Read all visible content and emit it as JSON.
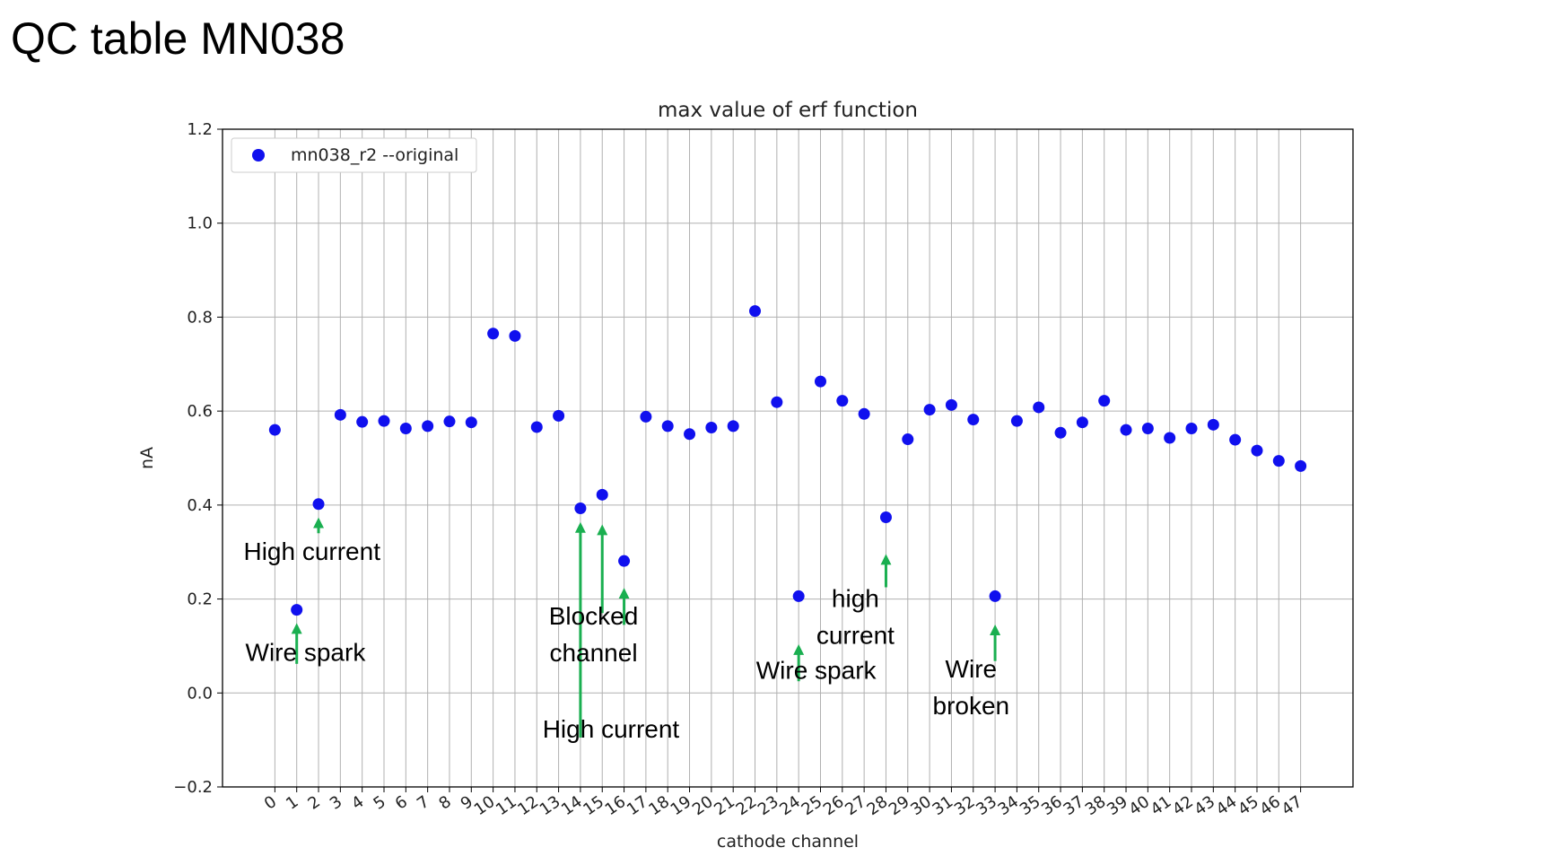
{
  "slide_title": "QC table MN038",
  "colors": {
    "points": "#1010ee",
    "arrows": "#1aaf50",
    "grid": "#b0b0b0"
  },
  "chart_data": {
    "type": "scatter",
    "title": "max value of erf function",
    "xlabel": "cathode channel",
    "ylabel": "nA",
    "xlim": [
      -2.4,
      49.4
    ],
    "ylim": [
      -0.2,
      1.2
    ],
    "yticks": [
      "−0.2",
      "0.0",
      "0.2",
      "0.4",
      "0.6",
      "0.8",
      "1.0",
      "1.2"
    ],
    "grid": true,
    "legend_position": "upper-left",
    "series": [
      {
        "name": "mn038_r2 --original",
        "color": "#1010ee",
        "x": [
          0,
          1,
          2,
          3,
          4,
          5,
          6,
          7,
          8,
          9,
          10,
          11,
          12,
          13,
          14,
          15,
          16,
          17,
          18,
          19,
          20,
          21,
          22,
          23,
          24,
          25,
          26,
          27,
          28,
          29,
          30,
          31,
          32,
          33,
          34,
          35,
          36,
          37,
          38,
          39,
          40,
          41,
          42,
          43,
          44,
          45,
          46,
          47
        ],
        "y": [
          0.56,
          0.177,
          0.402,
          0.592,
          0.577,
          0.579,
          0.563,
          0.568,
          0.578,
          0.576,
          0.765,
          0.76,
          0.566,
          0.59,
          0.393,
          0.422,
          0.281,
          0.588,
          0.568,
          0.551,
          0.565,
          0.568,
          0.813,
          0.619,
          0.206,
          0.663,
          0.622,
          0.594,
          0.374,
          0.54,
          0.603,
          0.613,
          0.582,
          0.206,
          0.579,
          0.608,
          0.554,
          0.576,
          0.622,
          0.56,
          0.563,
          0.543,
          0.563,
          0.571,
          0.539,
          0.516,
          0.494,
          0.483
        ]
      }
    ],
    "annotations": [
      {
        "lines": [
          "High current"
        ],
        "arrow_x": 2,
        "arrow_from_y": 0.34,
        "arrow_to_y": 0.37,
        "text_x": 1.7,
        "text_top_y": 0.283
      },
      {
        "lines": [
          "Wire spark"
        ],
        "arrow_x": 1,
        "arrow_from_y": 0.062,
        "arrow_to_y": 0.145,
        "text_x": 1.4,
        "text_top_y": 0.068
      },
      {
        "lines": [
          "High current"
        ],
        "arrow_x": 14,
        "arrow_from_y": -0.095,
        "arrow_to_y": 0.36,
        "text_x": 15.4,
        "text_top_y": -0.095
      },
      {
        "lines": [],
        "arrow_x": 15,
        "arrow_from_y": 0.17,
        "arrow_to_y": 0.355,
        "text_x": 15,
        "text_top_y": 0
      },
      {
        "lines": [
          "Blocked",
          "channel"
        ],
        "arrow_x": 16,
        "arrow_from_y": 0.145,
        "arrow_to_y": 0.22,
        "text_x": 14.6,
        "text_top_y": 0.146
      },
      {
        "lines": [
          "Wire spark"
        ],
        "arrow_x": 24,
        "arrow_from_y": 0.025,
        "arrow_to_y": 0.1,
        "text_x": 24.8,
        "text_top_y": 0.03
      },
      {
        "lines": [
          "high",
          "current"
        ],
        "arrow_x": 28,
        "arrow_from_y": 0.225,
        "arrow_to_y": 0.292,
        "text_x": 26.6,
        "text_top_y": 0.183
      },
      {
        "lines": [
          "Wire",
          "broken"
        ],
        "arrow_x": 33,
        "arrow_from_y": 0.068,
        "arrow_to_y": 0.142,
        "text_x": 31.9,
        "text_top_y": 0.033
      }
    ]
  }
}
